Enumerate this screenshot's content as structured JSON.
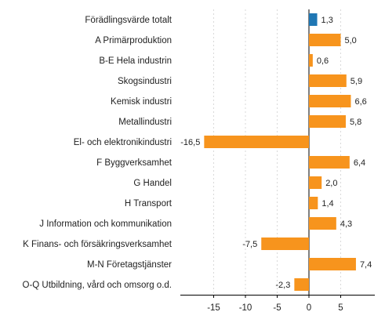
{
  "chart_data": {
    "type": "bar",
    "orientation": "horizontal",
    "title": "",
    "xlabel": "",
    "ylabel": "",
    "categories": [
      "Förädlingsvärde totalt",
      "A Primärproduktion",
      "B-E Hela industrin",
      "Skogsindustri",
      "Kemisk industri",
      "Metallindustri",
      "El- och elektronikindustri",
      "F Byggverksamhet",
      "G Handel",
      "H Transport",
      "J Information och kommunikation",
      "K Finans- och försäkringsverksamhet",
      "M-N Företagstjänster",
      "O-Q Utbildning, vård och omsorg o.d."
    ],
    "values": [
      1.3,
      5.0,
      0.6,
      5.9,
      6.6,
      5.8,
      -16.5,
      6.4,
      2.0,
      1.4,
      4.3,
      -7.5,
      7.4,
      -2.3
    ],
    "value_labels": [
      "1,3",
      "5,0",
      "0,6",
      "5,9",
      "6,6",
      "5,8",
      "-16,5",
      "6,4",
      "2,0",
      "1,4",
      "4,3",
      "-7,5",
      "7,4",
      "-2,3"
    ],
    "xlim": [
      -20,
      10
    ],
    "xticks": [
      -15,
      -10,
      -5,
      0,
      5
    ],
    "xtick_labels": [
      "-15",
      "-10",
      "-5",
      "0",
      "5"
    ],
    "grid": true,
    "colors": {
      "highlight": "#1f77b4",
      "bar": "#f7941d"
    },
    "highlight_index": 0
  }
}
